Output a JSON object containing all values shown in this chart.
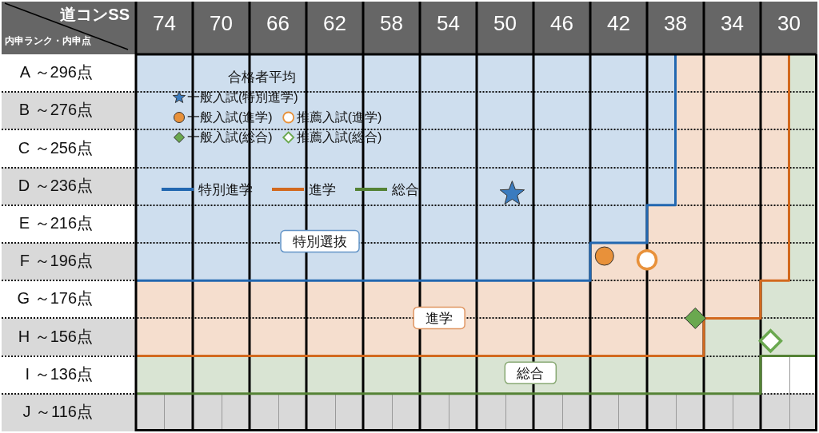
{
  "chart_data": {
    "type": "scatter",
    "xlabel": "道コンSS",
    "ylabel": "内申ランク・内申点",
    "legend_title": "合格者平均",
    "xlim": [
      76,
      28
    ],
    "xticks": [
      74,
      {
        "value": 72,
        "label": null
      },
      70,
      {
        "value": 68,
        "label": null
      },
      66,
      {
        "value": 64,
        "label": null
      },
      62,
      {
        "value": 60,
        "label": null
      },
      58,
      {
        "value": 56,
        "label": null
      },
      54,
      {
        "value": 52,
        "label": null
      },
      50,
      {
        "value": 48,
        "label": null
      },
      46,
      {
        "value": 44,
        "label": null
      },
      42,
      {
        "value": 40,
        "label": null
      },
      38,
      {
        "value": 36,
        "label": null
      },
      34,
      {
        "value": 32,
        "label": null
      },
      30
    ],
    "ylim": [
      96,
      296
    ],
    "yticks": [
      {
        "value": 116,
        "label": "J ～116点"
      },
      {
        "value": 136,
        "label": "I ～136点"
      },
      {
        "value": 156,
        "label": "H ～156点"
      },
      {
        "value": 176,
        "label": "G ～176点"
      },
      {
        "value": 196,
        "label": "F ～196点"
      },
      {
        "value": 216,
        "label": "E ～216点"
      },
      {
        "value": 236,
        "label": "D ～236点"
      },
      {
        "value": 256,
        "label": "C ～256点"
      },
      {
        "value": 276,
        "label": "B ～276点"
      },
      {
        "value": 296,
        "label": "A ～296点"
      }
    ],
    "grid": true,
    "legend": "top left",
    "bands": [
      {
        "axis": "y",
        "from": 96,
        "to": 116,
        "color": "#d9d9d9"
      }
    ],
    "series": [
      {
        "name": "特別進学",
        "type": "step",
        "color": "#2267b0",
        "x": [
          76,
          44,
          40,
          38
        ],
        "values": [
          176,
          196,
          216,
          296
        ],
        "lower": [
          176,
          196,
          216,
          296
        ],
        "upper": [
          296,
          296,
          296,
          296
        ]
      },
      {
        "name": "進学",
        "type": "step",
        "color": "#d2691e",
        "x": [
          76,
          44,
          40,
          38,
          36,
          32,
          30
        ],
        "values": [
          136,
          136,
          136,
          136,
          156,
          176,
          296
        ],
        "lower": [
          136,
          136,
          136,
          136,
          156,
          176,
          296
        ],
        "upper": [
          176,
          196,
          216,
          296,
          296,
          296,
          296
        ]
      },
      {
        "name": "総合",
        "type": "step",
        "color": "#548235",
        "x": [
          76,
          36,
          32,
          30,
          28
        ],
        "values": [
          116,
          116,
          136,
          136,
          296
        ],
        "lower": [
          116,
          116,
          136,
          136,
          296
        ],
        "upper": [
          136,
          156,
          176,
          296,
          296
        ]
      },
      {
        "name": "一般入試(特別進学)",
        "type": "scatter",
        "color": "#3a7bbf",
        "marker": "star",
        "x": [
          49.5
        ],
        "values": [
          222
        ]
      },
      {
        "name": "一般入試(進学)",
        "type": "scatter",
        "color": "#e8913a",
        "marker": "circle",
        "x": [
          43
        ],
        "values": [
          189
        ]
      },
      {
        "name": "推薦入試(進学)",
        "type": "scatter",
        "color": "#e8913a",
        "marker": "circle-open",
        "x": [
          40
        ],
        "values": [
          187
        ]
      },
      {
        "name": "一般入試(総合)",
        "type": "scatter",
        "color": "#6aa84f",
        "marker": "diamond",
        "x": [
          36.6
        ],
        "values": [
          156
        ]
      },
      {
        "name": "推薦入試(総合)",
        "type": "scatter",
        "color": "#6aa84f",
        "marker": "diamond-open",
        "x": [
          31.3
        ],
        "values": [
          144
        ]
      }
    ],
    "annotations": [
      "特別選抜",
      "進学",
      "総合"
    ]
  }
}
